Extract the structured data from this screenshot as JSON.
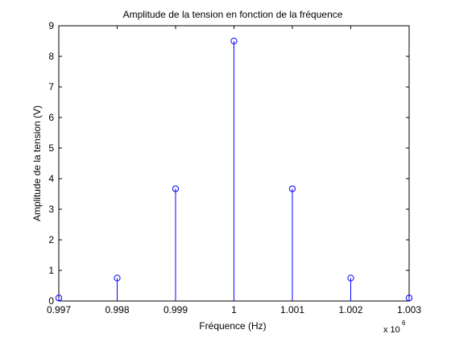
{
  "chart_data": {
    "type": "stem",
    "title": "Amplitude de la tension en fonction de la fréquence",
    "xlabel": "Fréquence (Hz)",
    "ylabel": "Amplitude de la tension (V)",
    "x_exponent_label": "x 10",
    "x_exponent_power": "6",
    "xlim": [
      0.997,
      1.003
    ],
    "ylim": [
      0,
      9
    ],
    "x_ticks": [
      0.997,
      0.998,
      0.999,
      1,
      1.001,
      1.002,
      1.003
    ],
    "x_tick_labels": [
      "0.997",
      "0.998",
      "0.999",
      "1",
      "1.001",
      "1.002",
      "1.003"
    ],
    "y_ticks": [
      0,
      1,
      2,
      3,
      4,
      5,
      6,
      7,
      8,
      9
    ],
    "y_tick_labels": [
      "0",
      "1",
      "2",
      "3",
      "4",
      "5",
      "6",
      "7",
      "8",
      "9"
    ],
    "grid": false,
    "series": [
      {
        "x": [
          0.997,
          0.998,
          0.999,
          1,
          1.001,
          1.002,
          1.003
        ],
        "y": [
          0.1,
          0.75,
          3.67,
          8.5,
          3.67,
          0.75,
          0.1
        ],
        "color": "#0000ff",
        "marker": "circle"
      }
    ]
  }
}
